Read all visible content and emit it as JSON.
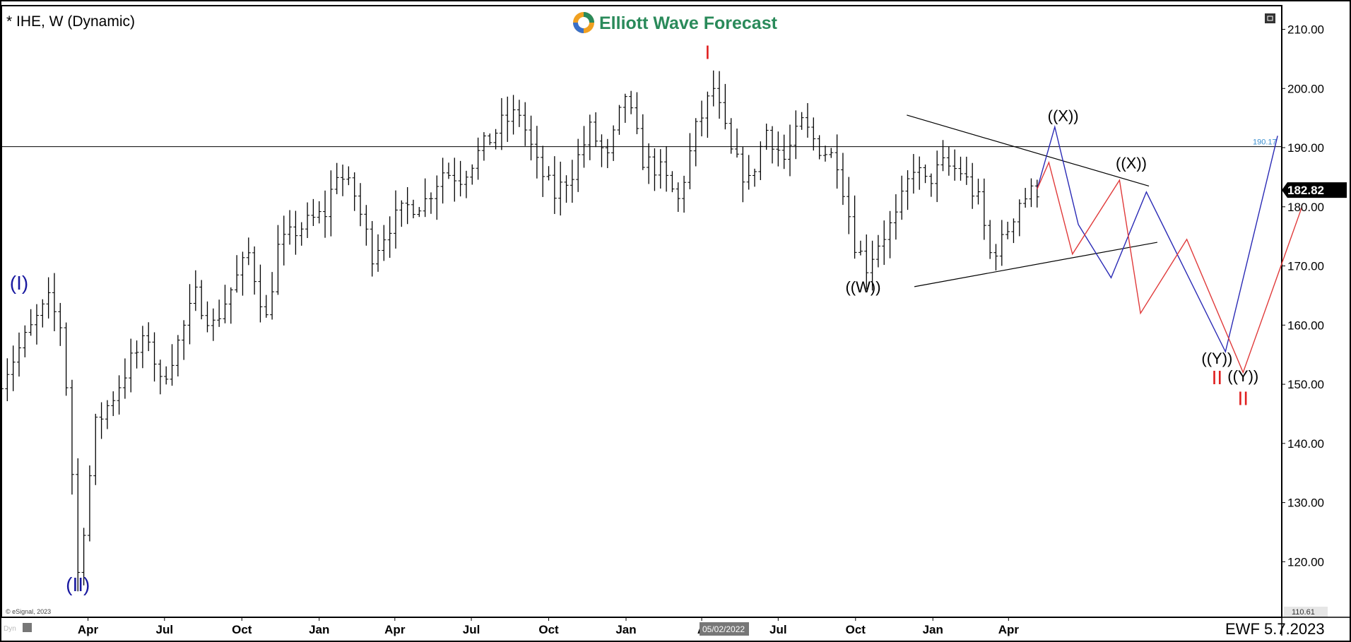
{
  "window": {
    "symbol_title": "* IHE, W (Dynamic)",
    "brand": "Elliott Wave Forecast",
    "footer_stamp": "EWF 5.7.2023",
    "copyright": "© eSignal, 2023",
    "mode_label": "Dyn",
    "cursor_date": "05/02/2022"
  },
  "colors": {
    "bars": "#000000",
    "blue_path": "#2a2ab5",
    "red_path": "#e03a3a",
    "label_blue": "#1a1aa0",
    "label_red": "#e02020",
    "label_black": "#000000",
    "level_line_label": "#3a8fd0",
    "price_badge_bg": "#000000",
    "brand_green": "#2a8a5a"
  },
  "chart_data": {
    "type": "ohlc",
    "timeframe": "weekly",
    "ylim": [
      110.61,
      214
    ],
    "y_ticks": [
      210,
      200,
      190,
      180,
      170,
      160,
      150,
      140,
      130,
      120
    ],
    "y_tick_labels": [
      "210.00",
      "200.00",
      "190.00",
      "180.00",
      "170.00",
      "160.00",
      "150.00",
      "140.00",
      "130.00",
      "120.00"
    ],
    "x_tick_labels": [
      "Apr",
      "Jul",
      "Oct",
      "Jan",
      "Apr",
      "Jul",
      "Oct",
      "Jan",
      "A",
      "Jul",
      "Oct",
      "Jan",
      "Apr"
    ],
    "x_tick_dates": [
      "2020-04-01",
      "2020-07-01",
      "2020-10-01",
      "2021-01-01",
      "2021-04-01",
      "2021-07-01",
      "2021-10-01",
      "2022-01-01",
      "2022-04-01",
      "2022-07-01",
      "2022-10-01",
      "2023-01-01",
      "2023-04-01"
    ],
    "x_domain": [
      "2019-12-20",
      "2024-02-20"
    ],
    "last_price": "182.82",
    "bottom_scale_label": "110.61",
    "horizontal_level": {
      "value": 190.17,
      "label": "190.17"
    },
    "price_anchors": [
      [
        "2019-12-20",
        151
      ],
      [
        "2020-01-10",
        156
      ],
      [
        "2020-01-31",
        161
      ],
      [
        "2020-02-14",
        164
      ],
      [
        "2020-02-28",
        160
      ],
      [
        "2020-03-06",
        150
      ],
      [
        "2020-03-13",
        135
      ],
      [
        "2020-03-20",
        118
      ],
      [
        "2020-03-27",
        126
      ],
      [
        "2020-04-10",
        143
      ],
      [
        "2020-05-01",
        148
      ],
      [
        "2020-05-22",
        154
      ],
      [
        "2020-06-12",
        158
      ],
      [
        "2020-06-26",
        150
      ],
      [
        "2020-07-17",
        157
      ],
      [
        "2020-08-07",
        165
      ],
      [
        "2020-08-28",
        160
      ],
      [
        "2020-09-18",
        166
      ],
      [
        "2020-10-09",
        172
      ],
      [
        "2020-10-30",
        161
      ],
      [
        "2020-11-13",
        173
      ],
      [
        "2020-12-04",
        176
      ],
      [
        "2021-01-08",
        179
      ],
      [
        "2021-01-22",
        186
      ],
      [
        "2021-02-12",
        182
      ],
      [
        "2021-03-05",
        172
      ],
      [
        "2021-03-26",
        177
      ],
      [
        "2021-04-16",
        180
      ],
      [
        "2021-05-07",
        181
      ],
      [
        "2021-05-28",
        186
      ],
      [
        "2021-06-18",
        185
      ],
      [
        "2021-07-09",
        189
      ],
      [
        "2021-08-06",
        194
      ],
      [
        "2021-08-27",
        196
      ],
      [
        "2021-09-17",
        187
      ],
      [
        "2021-10-08",
        182
      ],
      [
        "2021-10-29",
        186
      ],
      [
        "2021-11-19",
        193
      ],
      [
        "2021-12-10",
        188
      ],
      [
        "2021-12-31",
        199
      ],
      [
        "2022-01-21",
        188
      ],
      [
        "2022-02-11",
        186
      ],
      [
        "2022-03-04",
        181
      ],
      [
        "2022-03-25",
        193
      ],
      [
        "2022-04-15",
        200
      ],
      [
        "2022-05-06",
        189
      ],
      [
        "2022-05-27",
        184
      ],
      [
        "2022-06-17",
        193
      ],
      [
        "2022-07-08",
        188
      ],
      [
        "2022-07-29",
        194
      ],
      [
        "2022-08-19",
        190
      ],
      [
        "2022-09-09",
        188
      ],
      [
        "2022-09-30",
        174
      ],
      [
        "2022-10-14",
        170
      ],
      [
        "2022-10-28",
        174
      ],
      [
        "2022-11-18",
        178
      ],
      [
        "2022-12-09",
        187
      ],
      [
        "2022-12-23",
        184
      ],
      [
        "2023-01-13",
        187
      ],
      [
        "2023-02-03",
        186
      ],
      [
        "2023-02-24",
        181
      ],
      [
        "2023-03-10",
        172
      ],
      [
        "2023-03-24",
        174
      ],
      [
        "2023-04-14",
        181
      ],
      [
        "2023-05-05",
        183
      ]
    ],
    "wave_labels": [
      {
        "text": "(I)",
        "date": "2020-01-10",
        "price": 166,
        "color": "blue",
        "size": 28
      },
      {
        "text": "(II)",
        "date": "2020-03-20",
        "price": 115,
        "color": "blue",
        "size": 28
      },
      {
        "text": "I",
        "date": "2022-04-08",
        "price": 205,
        "color": "red",
        "size": 28
      },
      {
        "text": "((W))",
        "date": "2022-10-10",
        "price": 165.5,
        "color": "black",
        "size": 22
      },
      {
        "text": "((X))",
        "date": "2023-06-05",
        "price": 194.5,
        "color": "black",
        "size": 22
      },
      {
        "text": "((X))",
        "date": "2023-08-25",
        "price": 186.5,
        "color": "black",
        "size": 22
      },
      {
        "text": "((Y))",
        "date": "2023-12-05",
        "price": 153.5,
        "color": "black",
        "size": 22
      },
      {
        "text": "II",
        "date": "2023-12-05",
        "price": 150,
        "color": "red",
        "size": 28
      },
      {
        "text": "((Y))",
        "date": "2024-01-05",
        "price": 150.5,
        "color": "black",
        "size": 22
      },
      {
        "text": "II",
        "date": "2024-01-05",
        "price": 146.5,
        "color": "red",
        "size": 28
      }
    ],
    "paths": [
      {
        "color": "blue",
        "points": [
          [
            "2023-05-05",
            183
          ],
          [
            "2023-05-26",
            193.5
          ],
          [
            "2023-06-23",
            177
          ],
          [
            "2023-08-01",
            168
          ],
          [
            "2023-09-12",
            182.5
          ],
          [
            "2023-12-15",
            155.5
          ],
          [
            "2024-02-15",
            192
          ]
        ]
      },
      {
        "color": "red",
        "points": [
          [
            "2023-05-05",
            183
          ],
          [
            "2023-05-19",
            187.5
          ],
          [
            "2023-06-16",
            172
          ],
          [
            "2023-08-11",
            184.5
          ],
          [
            "2023-09-05",
            162
          ],
          [
            "2023-10-30",
            174.5
          ],
          [
            "2024-01-05",
            152
          ],
          [
            "2024-03-15",
            180
          ]
        ]
      }
    ],
    "trendlines": [
      {
        "from": [
          "2022-12-01",
          195.5
        ],
        "to": [
          "2023-09-15",
          183.5
        ]
      },
      {
        "from": [
          "2022-12-10",
          166.5
        ],
        "to": [
          "2023-09-25",
          174
        ]
      }
    ]
  }
}
